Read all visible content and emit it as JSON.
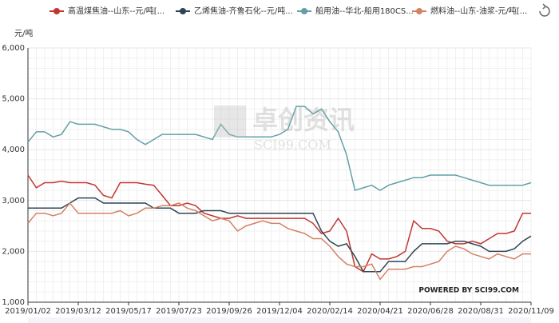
{
  "chart_data": {
    "type": "line",
    "y_label": "元/吨",
    "watermark": "卓创资讯",
    "watermark_sub": "SCI99.COM",
    "credit": "POWERED BY SCI99.COM",
    "categories": [
      "2019/01/02",
      null,
      null,
      null,
      null,
      null,
      "2019/03/12",
      null,
      null,
      null,
      null,
      null,
      "2019/05/17",
      null,
      null,
      null,
      null,
      null,
      "2019/07/23",
      null,
      null,
      null,
      null,
      null,
      "2019/09/26",
      null,
      null,
      null,
      null,
      null,
      "2019/12/04",
      null,
      null,
      null,
      null,
      null,
      "2020/02/14",
      null,
      null,
      null,
      null,
      null,
      "2020/04/21",
      null,
      null,
      null,
      null,
      null,
      "2020/06/28",
      null,
      null,
      null,
      null,
      null,
      "2020/08/31",
      null,
      null,
      null,
      null,
      null,
      "2020/11/09"
    ],
    "ylim": [
      1000,
      6000
    ],
    "yticks": [
      {
        "value": 1000,
        "label": "1,000"
      },
      {
        "value": 2000,
        "label": "2,000"
      },
      {
        "value": 3000,
        "label": "3,000"
      },
      {
        "value": 4000,
        "label": "4,000"
      },
      {
        "value": 5000,
        "label": "5,000"
      },
      {
        "value": 6000,
        "label": "6,000"
      }
    ],
    "grid": true,
    "legend": "top",
    "series": [
      {
        "name": "高温煤焦油--山东--元/吨[...",
        "color": "#c23531",
        "values": [
          3500,
          3250,
          3350,
          3350,
          3380,
          3350,
          3350,
          3350,
          3300,
          3100,
          3050,
          3350,
          3350,
          3350,
          3320,
          3300,
          3100,
          2900,
          2900,
          2950,
          2900,
          2750,
          2700,
          2650,
          2650,
          2700,
          2650,
          2650,
          2650,
          2650,
          2650,
          2650,
          2650,
          2650,
          2550,
          2350,
          2400,
          2650,
          2400,
          1700,
          1600,
          1950,
          1850,
          1850,
          1900,
          2000,
          2600,
          2450,
          2450,
          2400,
          2200,
          2150,
          2150,
          2200,
          2150,
          2250,
          2350,
          2350,
          2400,
          2750,
          2750
        ]
      },
      {
        "name": "乙烯焦油-齐鲁石化--元/吨...",
        "color": "#2f4554",
        "values": [
          2850,
          2850,
          2850,
          2850,
          2850,
          2950,
          3050,
          3050,
          3050,
          2950,
          2950,
          2950,
          2950,
          2950,
          2950,
          2850,
          2850,
          2850,
          2750,
          2750,
          2750,
          2800,
          2800,
          2800,
          2750,
          2750,
          2750,
          2750,
          2750,
          2750,
          2750,
          2750,
          2750,
          2750,
          2750,
          2400,
          2200,
          2100,
          2150,
          1900,
          1600,
          1600,
          1600,
          1800,
          1800,
          1800,
          2000,
          2150,
          2150,
          2150,
          2150,
          2200,
          2200,
          2150,
          2100,
          2000,
          2000,
          2000,
          2050,
          2200,
          2300
        ]
      },
      {
        "name": "船用油--华北-船用180CS...",
        "color": "#61a0a8",
        "values": [
          4150,
          4350,
          4350,
          4250,
          4300,
          4550,
          4500,
          4500,
          4500,
          4450,
          4400,
          4400,
          4350,
          4200,
          4100,
          4200,
          4300,
          4300,
          4300,
          4300,
          4300,
          4250,
          4200,
          4500,
          4300,
          4250,
          4250,
          4250,
          4250,
          4250,
          4300,
          4400,
          4850,
          4850,
          4700,
          4800,
          4550,
          4350,
          3900,
          3200,
          3250,
          3300,
          3200,
          3300,
          3350,
          3400,
          3450,
          3450,
          3500,
          3500,
          3500,
          3500,
          3450,
          3400,
          3350,
          3300,
          3300,
          3300,
          3300,
          3300,
          3350
        ]
      },
      {
        "name": "燃料油--山东-油浆-元/吨[...",
        "color": "#d48265",
        "values": [
          2550,
          2750,
          2750,
          2700,
          2750,
          2950,
          2750,
          2750,
          2750,
          2750,
          2750,
          2800,
          2700,
          2750,
          2850,
          2850,
          2900,
          2900,
          2950,
          2850,
          2800,
          2700,
          2600,
          2650,
          2600,
          2400,
          2500,
          2550,
          2600,
          2550,
          2550,
          2450,
          2400,
          2350,
          2250,
          2250,
          2100,
          1900,
          1750,
          1700,
          1700,
          1750,
          1450,
          1650,
          1650,
          1650,
          1700,
          1700,
          1750,
          1800,
          2000,
          2100,
          2050,
          1950,
          1900,
          1850,
          1950,
          1900,
          1850,
          1950,
          1950
        ]
      }
    ]
  }
}
